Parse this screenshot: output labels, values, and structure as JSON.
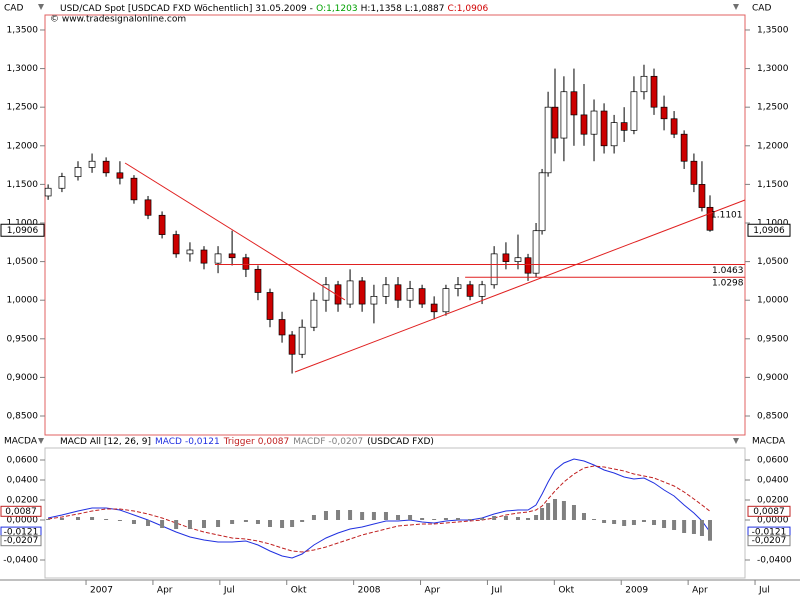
{
  "chart_data": [
    {
      "type": "candlestick",
      "title": "USD/CAD Spot [USDCAD FXD  Wöchentlich] 31.05.2009 -",
      "ohlc_labels": [
        {
          "text": "O:1,1203",
          "color": "#00a000"
        },
        {
          "text": "H:1,1358",
          "color": "#000000"
        },
        {
          "text": "L:1,0887",
          "color": "#000000"
        },
        {
          "text": "C:1,0906",
          "color": "#d00000"
        }
      ],
      "source": "© www.tradesignalonline.com",
      "y_axis_label": "CAD",
      "up_color": "#ffffff",
      "down_color": "#cc0000",
      "line_color": "#e02020",
      "x": [
        -1.7,
        -1.08,
        -0.36,
        0.27,
        0.9,
        1.52,
        2.15,
        2.78,
        3.41,
        4.04,
        4.66,
        5.29,
        5.92,
        6.55,
        7.17,
        7.71,
        8.25,
        8.79,
        9.24,
        9.69,
        10.22,
        10.76,
        11.3,
        11.84,
        12.38,
        12.91,
        13.45,
        13.99,
        14.53,
        15.07,
        15.61,
        16.14,
        16.68,
        17.22,
        17.76,
        18.3,
        18.83,
        19.37,
        19.82,
        20.18,
        20.45,
        20.72,
        21.03,
        21.43,
        21.88,
        22.33,
        22.78,
        23.23,
        23.68,
        24.13,
        24.57,
        25.02,
        25.47,
        25.92,
        26.37,
        26.82,
        27.26,
        27.62,
        27.98
      ],
      "open": [
        1.135,
        1.145,
        1.16,
        1.172,
        1.18,
        1.165,
        1.158,
        1.13,
        1.11,
        1.085,
        1.06,
        1.065,
        1.048,
        1.06,
        1.055,
        1.04,
        1.01,
        0.975,
        0.955,
        0.93,
        0.965,
        1.0,
        1.02,
        0.995,
        1.025,
        0.995,
        1.005,
        1.02,
        1.0,
        1.015,
        0.995,
        0.985,
        1.015,
        1.02,
        1.005,
        1.02,
        1.06,
        1.05,
        1.055,
        1.035,
        1.09,
        1.165,
        1.25,
        1.21,
        1.27,
        1.24,
        1.215,
        1.245,
        1.2,
        1.23,
        1.22,
        1.27,
        1.29,
        1.25,
        1.235,
        1.215,
        1.18,
        1.15,
        1.1203
      ],
      "high": [
        1.15,
        1.165,
        1.18,
        1.19,
        1.185,
        1.18,
        1.162,
        1.135,
        1.115,
        1.09,
        1.075,
        1.07,
        1.07,
        1.09,
        1.06,
        1.045,
        1.015,
        0.985,
        0.96,
        0.975,
        1.01,
        1.03,
        1.025,
        1.04,
        1.03,
        1.02,
        1.03,
        1.03,
        1.025,
        1.02,
        1.005,
        1.02,
        1.03,
        1.025,
        1.025,
        1.07,
        1.075,
        1.085,
        1.06,
        1.1,
        1.17,
        1.27,
        1.3,
        1.29,
        1.3,
        1.28,
        1.26,
        1.255,
        1.24,
        1.25,
        1.29,
        1.305,
        1.3,
        1.265,
        1.245,
        1.22,
        1.19,
        1.18,
        1.1358
      ],
      "low": [
        1.13,
        1.14,
        1.155,
        1.165,
        1.16,
        1.15,
        1.125,
        1.105,
        1.08,
        1.055,
        1.05,
        1.04,
        1.035,
        1.045,
        1.03,
        1.0,
        0.965,
        0.945,
        0.905,
        0.925,
        0.96,
        0.985,
        0.985,
        0.99,
        0.985,
        0.97,
        0.995,
        0.99,
        0.99,
        0.99,
        0.975,
        0.98,
        1.005,
        1.0,
        0.995,
        1.015,
        1.04,
        1.04,
        1.025,
        1.03,
        1.085,
        1.16,
        1.19,
        1.18,
        1.2,
        1.2,
        1.18,
        1.19,
        1.19,
        1.205,
        1.215,
        1.26,
        1.24,
        1.22,
        1.21,
        1.17,
        1.14,
        1.115,
        1.0887
      ],
      "close": [
        1.145,
        1.16,
        1.172,
        1.18,
        1.165,
        1.158,
        1.13,
        1.11,
        1.085,
        1.06,
        1.065,
        1.048,
        1.06,
        1.055,
        1.04,
        1.01,
        0.975,
        0.955,
        0.93,
        0.965,
        1.0,
        1.02,
        0.995,
        1.025,
        0.995,
        1.005,
        1.02,
        1.0,
        1.015,
        0.995,
        0.985,
        1.015,
        1.02,
        1.005,
        1.02,
        1.06,
        1.05,
        1.055,
        1.035,
        1.09,
        1.165,
        1.25,
        1.21,
        1.27,
        1.24,
        1.215,
        1.245,
        1.2,
        1.23,
        1.22,
        1.27,
        1.29,
        1.25,
        1.235,
        1.215,
        1.18,
        1.15,
        1.12,
        1.0906
      ],
      "xlim": [
        -1.84,
        29.55
      ],
      "xticks": [
        {
          "value": 0,
          "label": "2007"
        },
        {
          "value": 3,
          "label": "Apr"
        },
        {
          "value": 6,
          "label": "Jul"
        },
        {
          "value": 9,
          "label": "Okt"
        },
        {
          "value": 12,
          "label": "2008"
        },
        {
          "value": 15,
          "label": "Apr"
        },
        {
          "value": 18,
          "label": "Jul"
        },
        {
          "value": 21,
          "label": "Okt"
        },
        {
          "value": 24,
          "label": "2009"
        },
        {
          "value": 27,
          "label": "Apr"
        },
        {
          "value": 30,
          "label": "Jul"
        }
      ],
      "ylim": [
        0.8254,
        1.3694
      ],
      "yticks": [
        {
          "value": 0.85,
          "label": "0,8500"
        },
        {
          "value": 0.9,
          "label": "0,9000"
        },
        {
          "value": 0.95,
          "label": "0,9500"
        },
        {
          "value": 1.0,
          "label": "1,0000"
        },
        {
          "value": 1.05,
          "label": "1,0500"
        },
        {
          "value": 1.1,
          "label": "1,1000"
        },
        {
          "value": 1.15,
          "label": "1,1500"
        },
        {
          "value": 1.2,
          "label": "1,2000"
        },
        {
          "value": 1.25,
          "label": "1,2500"
        },
        {
          "value": 1.3,
          "label": "1,3000"
        },
        {
          "value": 1.35,
          "label": "1,3500"
        }
      ],
      "last_price": {
        "value": 1.0906,
        "label": "1,0906"
      },
      "trendlines": [
        {
          "x": [
            1.75,
            11.61
          ],
          "y": [
            1.1777,
            1.0003
          ]
        },
        {
          "x": [
            9.37,
            29.55
          ],
          "y": [
            0.907,
            1.1298
          ]
        }
      ],
      "levels": [
        {
          "value": 1.0463,
          "x_start": 5.78
        },
        {
          "value": 1.0298,
          "x_start": 17.0
        }
      ],
      "trendline_label": 1.1101
    },
    {
      "type": "macd",
      "title": "MACD All [12, 26, 9]",
      "suffix": "(USDCAD FXD)",
      "y_axis_label": "MACDA",
      "x": [
        -1.7,
        -1.08,
        -0.36,
        0.27,
        0.9,
        1.52,
        2.15,
        2.78,
        3.41,
        4.04,
        4.66,
        5.29,
        5.92,
        6.55,
        7.17,
        7.71,
        8.25,
        8.79,
        9.24,
        9.69,
        10.22,
        10.76,
        11.3,
        11.84,
        12.38,
        12.91,
        13.45,
        13.99,
        14.53,
        15.07,
        15.61,
        16.14,
        16.68,
        17.22,
        17.76,
        18.3,
        18.83,
        19.37,
        19.82,
        20.18,
        20.45,
        20.72,
        21.03,
        21.43,
        21.88,
        22.33,
        22.78,
        23.23,
        23.68,
        24.13,
        24.57,
        25.02,
        25.47,
        25.92,
        26.37,
        26.82,
        27.26,
        27.62,
        27.98
      ],
      "series": [
        {
          "name": "MACD",
          "color": "#2030e0",
          "kind": "line",
          "last_label": "-0,0121",
          "values": [
            0.002,
            0.005,
            0.009,
            0.012,
            0.012,
            0.01,
            0.005,
            0.0,
            -0.006,
            -0.012,
            -0.017,
            -0.02,
            -0.022,
            -0.022,
            -0.021,
            -0.025,
            -0.031,
            -0.036,
            -0.038,
            -0.034,
            -0.025,
            -0.018,
            -0.013,
            -0.009,
            -0.007,
            -0.004,
            -0.001,
            -0.001,
            0.0,
            -0.002,
            -0.003,
            -0.001,
            0.0,
            0.0,
            0.002,
            0.006,
            0.009,
            0.01,
            0.01,
            0.015,
            0.026,
            0.038,
            0.05,
            0.057,
            0.061,
            0.059,
            0.055,
            0.05,
            0.047,
            0.043,
            0.041,
            0.042,
            0.037,
            0.03,
            0.024,
            0.015,
            0.007,
            -0.001,
            -0.0121
          ]
        },
        {
          "name": "Trigger",
          "color": "#c02020",
          "kind": "dashed",
          "last_label": "0,0087",
          "values": [
            0.001,
            0.003,
            0.006,
            0.009,
            0.011,
            0.011,
            0.009,
            0.006,
            0.002,
            -0.003,
            -0.008,
            -0.012,
            -0.015,
            -0.018,
            -0.019,
            -0.021,
            -0.024,
            -0.028,
            -0.031,
            -0.032,
            -0.03,
            -0.027,
            -0.023,
            -0.019,
            -0.015,
            -0.012,
            -0.009,
            -0.006,
            -0.005,
            -0.004,
            -0.004,
            -0.003,
            -0.002,
            -0.001,
            0.0,
            0.002,
            0.005,
            0.007,
            0.008,
            0.01,
            0.014,
            0.021,
            0.029,
            0.038,
            0.046,
            0.052,
            0.054,
            0.053,
            0.051,
            0.049,
            0.046,
            0.044,
            0.042,
            0.038,
            0.034,
            0.028,
            0.021,
            0.015,
            0.0087
          ]
        },
        {
          "name": "MACDF",
          "color": "#808080",
          "kind": "bar",
          "last_label": "-0,0207",
          "values": [
            0.001,
            0.002,
            0.003,
            0.003,
            0.001,
            -0.001,
            -0.004,
            -0.006,
            -0.008,
            -0.009,
            -0.009,
            -0.008,
            -0.007,
            -0.004,
            -0.002,
            -0.004,
            -0.007,
            -0.008,
            -0.007,
            -0.002,
            0.005,
            0.009,
            0.01,
            0.01,
            0.008,
            0.008,
            0.008,
            0.005,
            0.005,
            0.002,
            0.001,
            0.002,
            0.002,
            0.001,
            0.002,
            0.004,
            0.004,
            0.003,
            0.002,
            0.005,
            0.012,
            0.017,
            0.021,
            0.019,
            0.015,
            0.007,
            0.001,
            -0.003,
            -0.004,
            -0.006,
            -0.005,
            -0.002,
            -0.005,
            -0.008,
            -0.01,
            -0.013,
            -0.014,
            -0.016,
            -0.0207
          ]
        }
      ],
      "xlim": [
        -1.84,
        29.55
      ],
      "ylim": [
        -0.058,
        0.072
      ],
      "yticks": [
        {
          "value": -0.04,
          "label": "-0,0400"
        },
        {
          "value": 0.0,
          "label": "0,0000"
        },
        {
          "value": 0.02,
          "label": "0,0200"
        },
        {
          "value": 0.04,
          "label": "0,0400"
        },
        {
          "value": 0.06,
          "label": "0,0600"
        }
      ]
    }
  ]
}
